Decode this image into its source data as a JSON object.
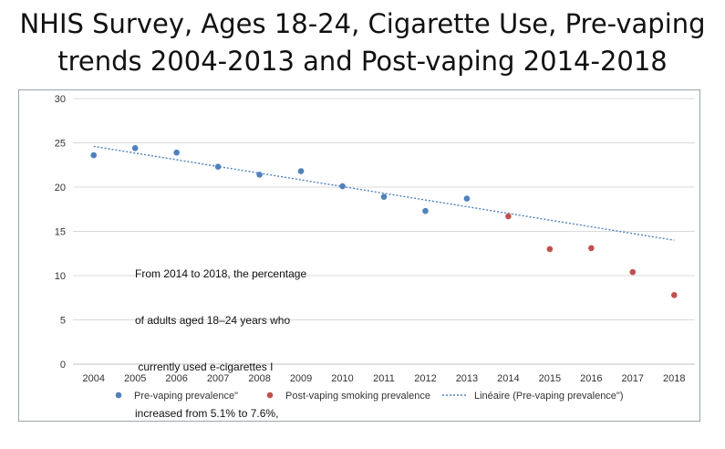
{
  "title_line1": "NHIS Survey, Ages 18-24, Cigarette Use, Pre-vaping",
  "title_line2": "trends 2004-2013 and Post-vaping 2014-2018",
  "chart_data": {
    "type": "scatter",
    "x": [
      2004,
      2005,
      2006,
      2007,
      2008,
      2009,
      2010,
      2011,
      2012,
      2013,
      2014,
      2015,
      2016,
      2017,
      2018
    ],
    "ylim": [
      0,
      30
    ],
    "yticks": [
      0,
      5,
      10,
      15,
      20,
      25,
      30
    ],
    "grid": true,
    "legend_position": "bottom",
    "series": [
      {
        "name": "Pre-vaping prevalence\"",
        "color": "#4f81bd",
        "x": [
          2004,
          2005,
          2006,
          2007,
          2008,
          2009,
          2010,
          2011,
          2012,
          2013
        ],
        "values": [
          23.6,
          24.4,
          23.9,
          22.3,
          21.4,
          21.8,
          20.1,
          18.9,
          17.3,
          18.7
        ]
      },
      {
        "name": "Post-vaping smoking prevalence",
        "color": "#c0504d",
        "x": [
          2014,
          2015,
          2016,
          2017,
          2018
        ],
        "values": [
          16.7,
          13.0,
          13.1,
          10.4,
          7.8
        ]
      }
    ],
    "trendline": {
      "name": "Linéaire  (Pre-vaping prevalence\")",
      "color": "#4f81bd",
      "x": [
        2004,
        2018
      ],
      "values": [
        24.6,
        14.0
      ]
    },
    "annotation": [
      "From 2014 to 2018, the percentage",
      "of adults aged 18–24 years who",
      " currently used e-cigarettes I",
      "increased from 5.1% to 7.6%,"
    ]
  }
}
